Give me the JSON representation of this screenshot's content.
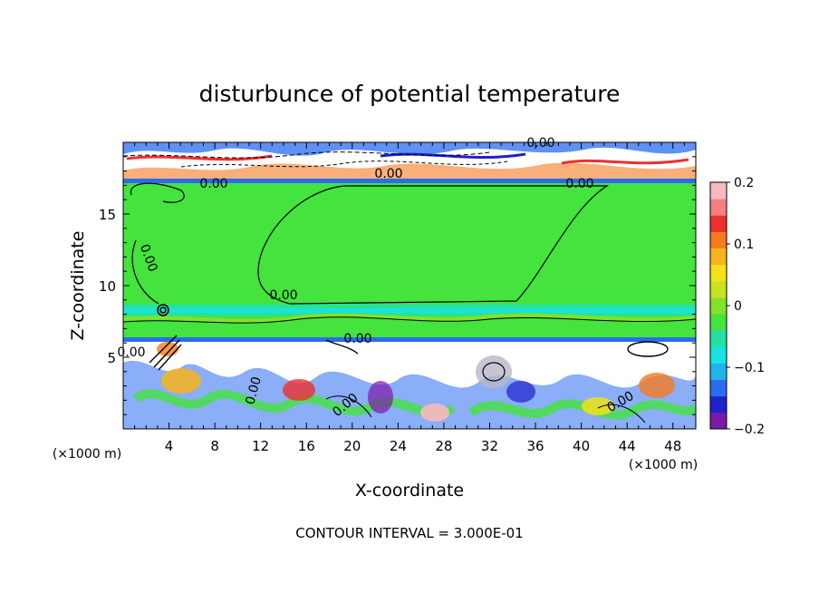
{
  "chart_data": {
    "type": "heatmap",
    "title": "disturbunce of potential temperature",
    "xlabel": "X-coordinate",
    "ylabel": "Z-coordinate",
    "x_unit": "(×1000 m)",
    "xlim": [
      0,
      50
    ],
    "ylim": [
      0,
      20
    ],
    "x_ticks": [
      4,
      8,
      12,
      16,
      20,
      24,
      28,
      32,
      36,
      40,
      44,
      48
    ],
    "y_ticks": [
      5,
      10,
      15
    ],
    "colorbar": {
      "min": -0.2,
      "max": 0.2,
      "ticks": [
        "0.2",
        "0.1",
        "0",
        "−0.1",
        "−0.2"
      ],
      "colors": [
        "#7a1aa8",
        "#2020cc",
        "#2a6cf0",
        "#1fb5e8",
        "#19e3e0",
        "#20e2a8",
        "#44e33d",
        "#85e02a",
        "#c8e320",
        "#f2e21a",
        "#f7b41c",
        "#f57a20",
        "#ee3030",
        "#f58080",
        "#f8b8c0"
      ]
    },
    "contour_labels": [
      "0.00",
      "0.00",
      "0.00",
      "0.00",
      "0.00",
      "0.00",
      "0.00",
      "0.00",
      "0.00",
      "0.00",
      "0.00"
    ],
    "footer": "CONTOUR INTERVAL = 3.000E-01"
  }
}
